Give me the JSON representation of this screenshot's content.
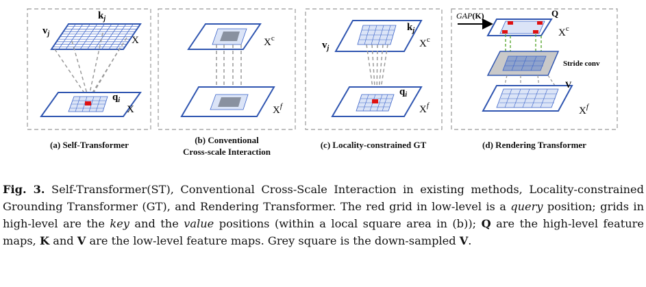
{
  "panels": [
    {
      "caption": "(a) Self-Transformer",
      "labels": {
        "k": "k",
        "k_sub": "j",
        "v": "v",
        "v_sub": "j",
        "x_top": "X",
        "q": "q",
        "q_sub": "i",
        "x_bot": "X"
      }
    },
    {
      "caption_line1": "(b) Conventional",
      "caption_line2": "Cross-scale Interaction",
      "labels": {
        "x_top": "X",
        "x_top_sup": "c",
        "x_bot": "X",
        "x_bot_sup": "f"
      }
    },
    {
      "caption": "(c) Locality-constrained GT",
      "labels": {
        "k": "k",
        "k_sub": "j",
        "v": "v",
        "v_sub": "j",
        "x_top": "X",
        "x_top_sup": "c",
        "q": "q",
        "q_sub": "i",
        "x_bot": "X",
        "x_bot_sup": "f"
      }
    },
    {
      "caption": "(d) Rendering  Transformer",
      "labels": {
        "gap": "GAP",
        "gap_arg": "(K)",
        "Q": "Q",
        "x_top": "X",
        "x_top_sup": "c",
        "stride": "Stride conv",
        "V": "V",
        "x_bot": "X",
        "x_bot_sup": "f"
      }
    }
  ],
  "caption": {
    "fig_label": "Fig. 3.",
    "t1": " Self-Transformer(ST), Conventional Cross-Scale Interaction in existing methods, Locality-constrained Grounding Transformer (GT), and Rendering Transformer. The red grid in low-level is a ",
    "query": "query",
    "t2": " position; grids in high-level are the ",
    "key": "key",
    "t3": " and the ",
    "value": "value",
    "t4": " positions (within a local square area in (b)); ",
    "Q": "Q",
    "t5": " are the high-level feature maps, ",
    "K": "K",
    "t6": " and ",
    "V": "V",
    "t7": " are the low-level feature maps. Grey square is the down-sampled ",
    "V2": "V",
    "t8": "."
  },
  "colors": {
    "plane": "#2f55b0",
    "grid": "#3a62c8",
    "query": "#e01010",
    "grey": "#b8b8b8",
    "dash": "#999999",
    "green": "#5aa832"
  }
}
